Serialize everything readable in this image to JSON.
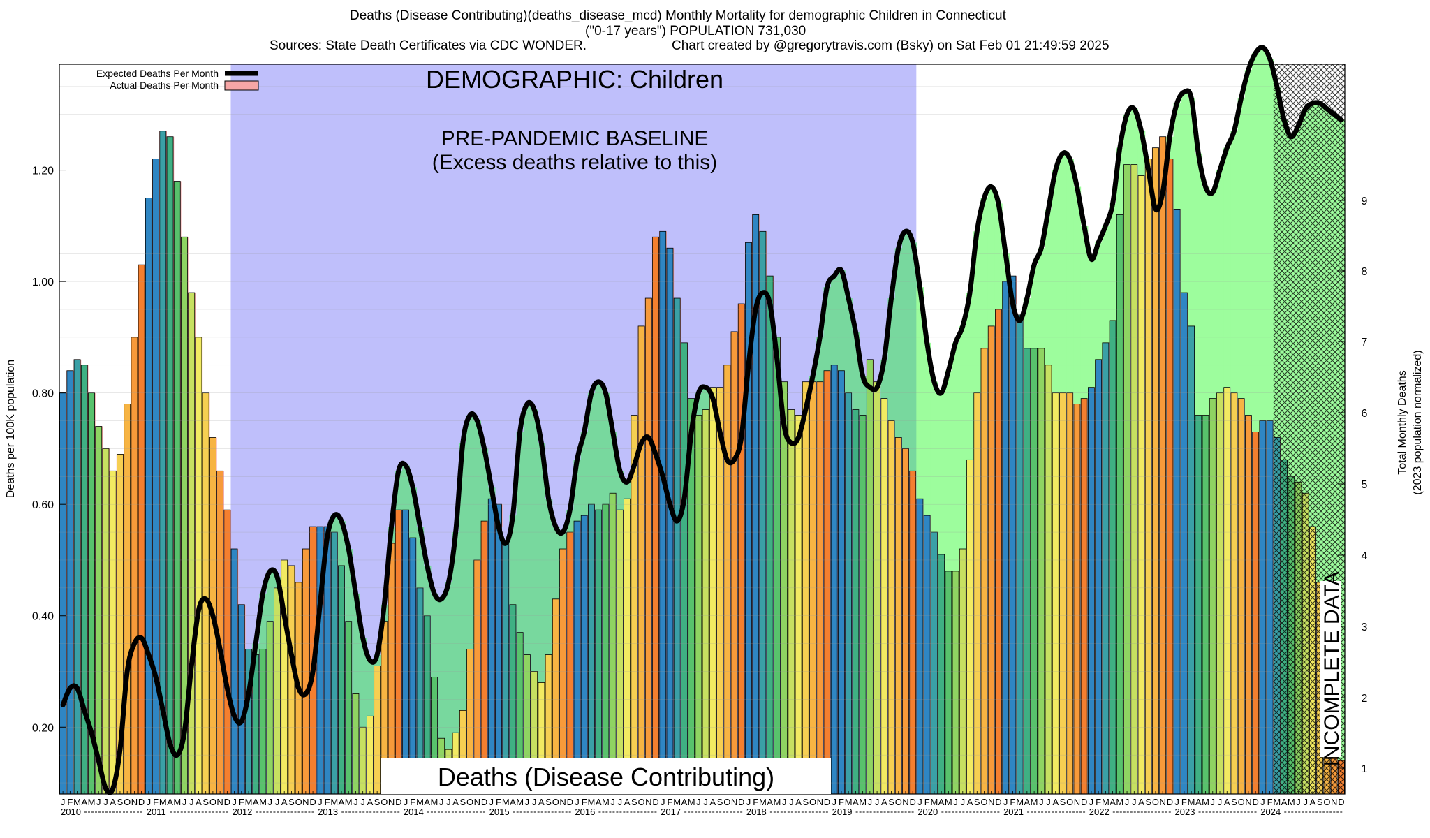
{
  "title": {
    "line1": "Deaths (Disease Contributing)(deaths_disease_mcd) Monthly Mortality for demographic Children in Connecticut",
    "line2": "(\"0-17 years\") POPULATION 731,030",
    "line3a": "Sources: State Death Certificates via CDC WONDER.",
    "line3b": "Chart created by @gregorytravis.com (Bsky) on Sat Feb 01 21:49:59 2025"
  },
  "annotations": {
    "demographic": "DEMOGRAPHIC: Children",
    "baseline_1": "PRE-PANDEMIC BASELINE",
    "baseline_2": "(Excess deaths relative to this)",
    "metric": "Deaths (Disease Contributing)",
    "incomplete": "INCOMPLETE DATA"
  },
  "legend": {
    "expected": "Expected Deaths Per Month",
    "actual": "Actual Deaths Per Month"
  },
  "colors": {
    "baseline_band": "#bfbffb",
    "excess_fill": "#9dfd9d",
    "excess_fill_in_band": "#78d89e",
    "actual_area": "#f6a6a6",
    "expected_line": "#000000",
    "bar_palette": [
      "#2f86c3",
      "#3aa0a6",
      "#3fb083",
      "#58c26c",
      "#8fd462",
      "#c7e061",
      "#f2ea62",
      "#f6cf52",
      "#f7b443",
      "#f79a3a",
      "#f47f2f"
    ]
  },
  "chart_data": {
    "type": "bar",
    "ylabel": "Deaths per 100K population",
    "y2label_1": "Total Monthly Deaths",
    "y2label_2": "(2023 population normalized)",
    "ylim": [
      0.08,
      1.39
    ],
    "y_ticks": [
      "0.20",
      "0.40",
      "0.60",
      "0.80",
      "1.00",
      "1.20"
    ],
    "y2_ticks": [
      "1",
      "2",
      "3",
      "4",
      "5",
      "6",
      "7",
      "8",
      "9"
    ],
    "month_labels": [
      "J",
      "F",
      "M",
      "A",
      "M",
      "J",
      "J",
      "A",
      "S",
      "O",
      "N",
      "D"
    ],
    "years": [
      "2010",
      "2011",
      "2012",
      "2013",
      "2014",
      "2015",
      "2016",
      "2017",
      "2018",
      "2019",
      "2020",
      "2021",
      "2022",
      "2023",
      "2024"
    ],
    "baseline_period": {
      "start": "2012-01",
      "end": "2019-12"
    },
    "incomplete_period": {
      "start": "2024-03",
      "end": "2024-12"
    },
    "grid": true,
    "legend_position": "top-left",
    "series": [
      {
        "name": "Actual Deaths Per Month",
        "values": [
          0.8,
          0.84,
          0.86,
          0.85,
          0.8,
          0.74,
          0.7,
          0.66,
          0.69,
          0.78,
          0.9,
          1.03,
          1.15,
          1.22,
          1.27,
          1.26,
          1.18,
          1.08,
          0.98,
          0.9,
          0.8,
          0.72,
          0.66,
          0.59,
          0.52,
          0.42,
          0.34,
          0.33,
          0.34,
          0.39,
          0.45,
          0.5,
          0.49,
          0.46,
          0.52,
          0.56,
          0.56,
          0.56,
          0.55,
          0.49,
          0.39,
          0.26,
          0.2,
          0.22,
          0.31,
          0.39,
          0.53,
          0.59,
          0.59,
          0.54,
          0.45,
          0.4,
          0.29,
          0.18,
          0.16,
          0.19,
          0.23,
          0.34,
          0.5,
          0.57,
          0.61,
          0.6,
          0.53,
          0.42,
          0.37,
          0.33,
          0.3,
          0.28,
          0.33,
          0.43,
          0.52,
          0.55,
          0.57,
          0.58,
          0.6,
          0.59,
          0.6,
          0.62,
          0.59,
          0.61,
          0.76,
          0.92,
          0.97,
          1.08,
          1.09,
          1.06,
          0.97,
          0.89,
          0.79,
          0.76,
          0.77,
          0.81,
          0.81,
          0.85,
          0.91,
          0.96,
          1.07,
          1.12,
          1.09,
          1.01,
          0.9,
          0.82,
          0.77,
          0.76,
          0.82,
          0.82,
          0.82,
          0.84,
          0.85,
          0.84,
          0.8,
          0.77,
          0.76,
          0.86,
          0.82,
          0.79,
          0.75,
          0.72,
          0.7,
          0.66,
          0.61,
          0.58,
          0.55,
          0.51,
          0.48,
          0.48,
          0.52,
          0.68,
          0.8,
          0.88,
          0.92,
          0.95,
          1.0,
          1.01,
          0.94,
          0.88,
          0.88,
          0.88,
          0.85,
          0.8,
          0.8,
          0.8,
          0.78,
          0.79,
          0.81,
          0.86,
          0.89,
          0.93,
          1.12,
          1.21,
          1.21,
          1.19,
          1.22,
          1.24,
          1.26,
          1.22,
          1.13,
          0.98,
          0.92,
          0.76,
          0.76,
          0.79,
          0.8,
          0.81,
          0.8,
          0.79,
          0.76,
          0.73,
          0.75,
          0.75,
          0.72,
          0.68,
          0.65,
          0.64,
          0.62,
          0.56,
          0.46,
          0.37,
          0.24,
          0.14
        ]
      },
      {
        "name": "Expected Deaths Per Month",
        "values": [
          0.24,
          0.27,
          0.27,
          0.23,
          0.19,
          0.14,
          0.09,
          0.09,
          0.16,
          0.3,
          0.35,
          0.36,
          0.33,
          0.29,
          0.23,
          0.17,
          0.15,
          0.19,
          0.31,
          0.41,
          0.43,
          0.4,
          0.34,
          0.27,
          0.22,
          0.21,
          0.26,
          0.35,
          0.44,
          0.48,
          0.47,
          0.4,
          0.33,
          0.27,
          0.26,
          0.3,
          0.42,
          0.54,
          0.58,
          0.57,
          0.52,
          0.44,
          0.36,
          0.32,
          0.33,
          0.42,
          0.56,
          0.66,
          0.67,
          0.63,
          0.56,
          0.49,
          0.44,
          0.43,
          0.46,
          0.55,
          0.71,
          0.76,
          0.75,
          0.7,
          0.63,
          0.56,
          0.53,
          0.58,
          0.73,
          0.78,
          0.77,
          0.71,
          0.61,
          0.56,
          0.55,
          0.59,
          0.68,
          0.73,
          0.8,
          0.82,
          0.8,
          0.73,
          0.66,
          0.64,
          0.67,
          0.71,
          0.72,
          0.69,
          0.65,
          0.6,
          0.57,
          0.61,
          0.73,
          0.8,
          0.81,
          0.79,
          0.73,
          0.68,
          0.68,
          0.72,
          0.85,
          0.95,
          0.98,
          0.96,
          0.86,
          0.74,
          0.71,
          0.72,
          0.77,
          0.83,
          0.9,
          0.99,
          1.01,
          1.02,
          0.97,
          0.91,
          0.83,
          0.81,
          0.81,
          0.86,
          0.97,
          1.06,
          1.09,
          1.07,
          0.99,
          0.89,
          0.82,
          0.8,
          0.84,
          0.89,
          0.92,
          0.98,
          1.09,
          1.15,
          1.17,
          1.14,
          1.05,
          0.96,
          0.93,
          0.97,
          1.03,
          1.06,
          1.13,
          1.2,
          1.23,
          1.22,
          1.17,
          1.1,
          1.04,
          1.07,
          1.1,
          1.14,
          1.24,
          1.3,
          1.31,
          1.27,
          1.2,
          1.13,
          1.16,
          1.26,
          1.32,
          1.34,
          1.33,
          1.23,
          1.17,
          1.16,
          1.2,
          1.24,
          1.27,
          1.33,
          1.38,
          1.41,
          1.42,
          1.4,
          1.35,
          1.29,
          1.26,
          1.28,
          1.31,
          1.32,
          1.32,
          1.31,
          1.3,
          1.29
        ]
      }
    ]
  }
}
